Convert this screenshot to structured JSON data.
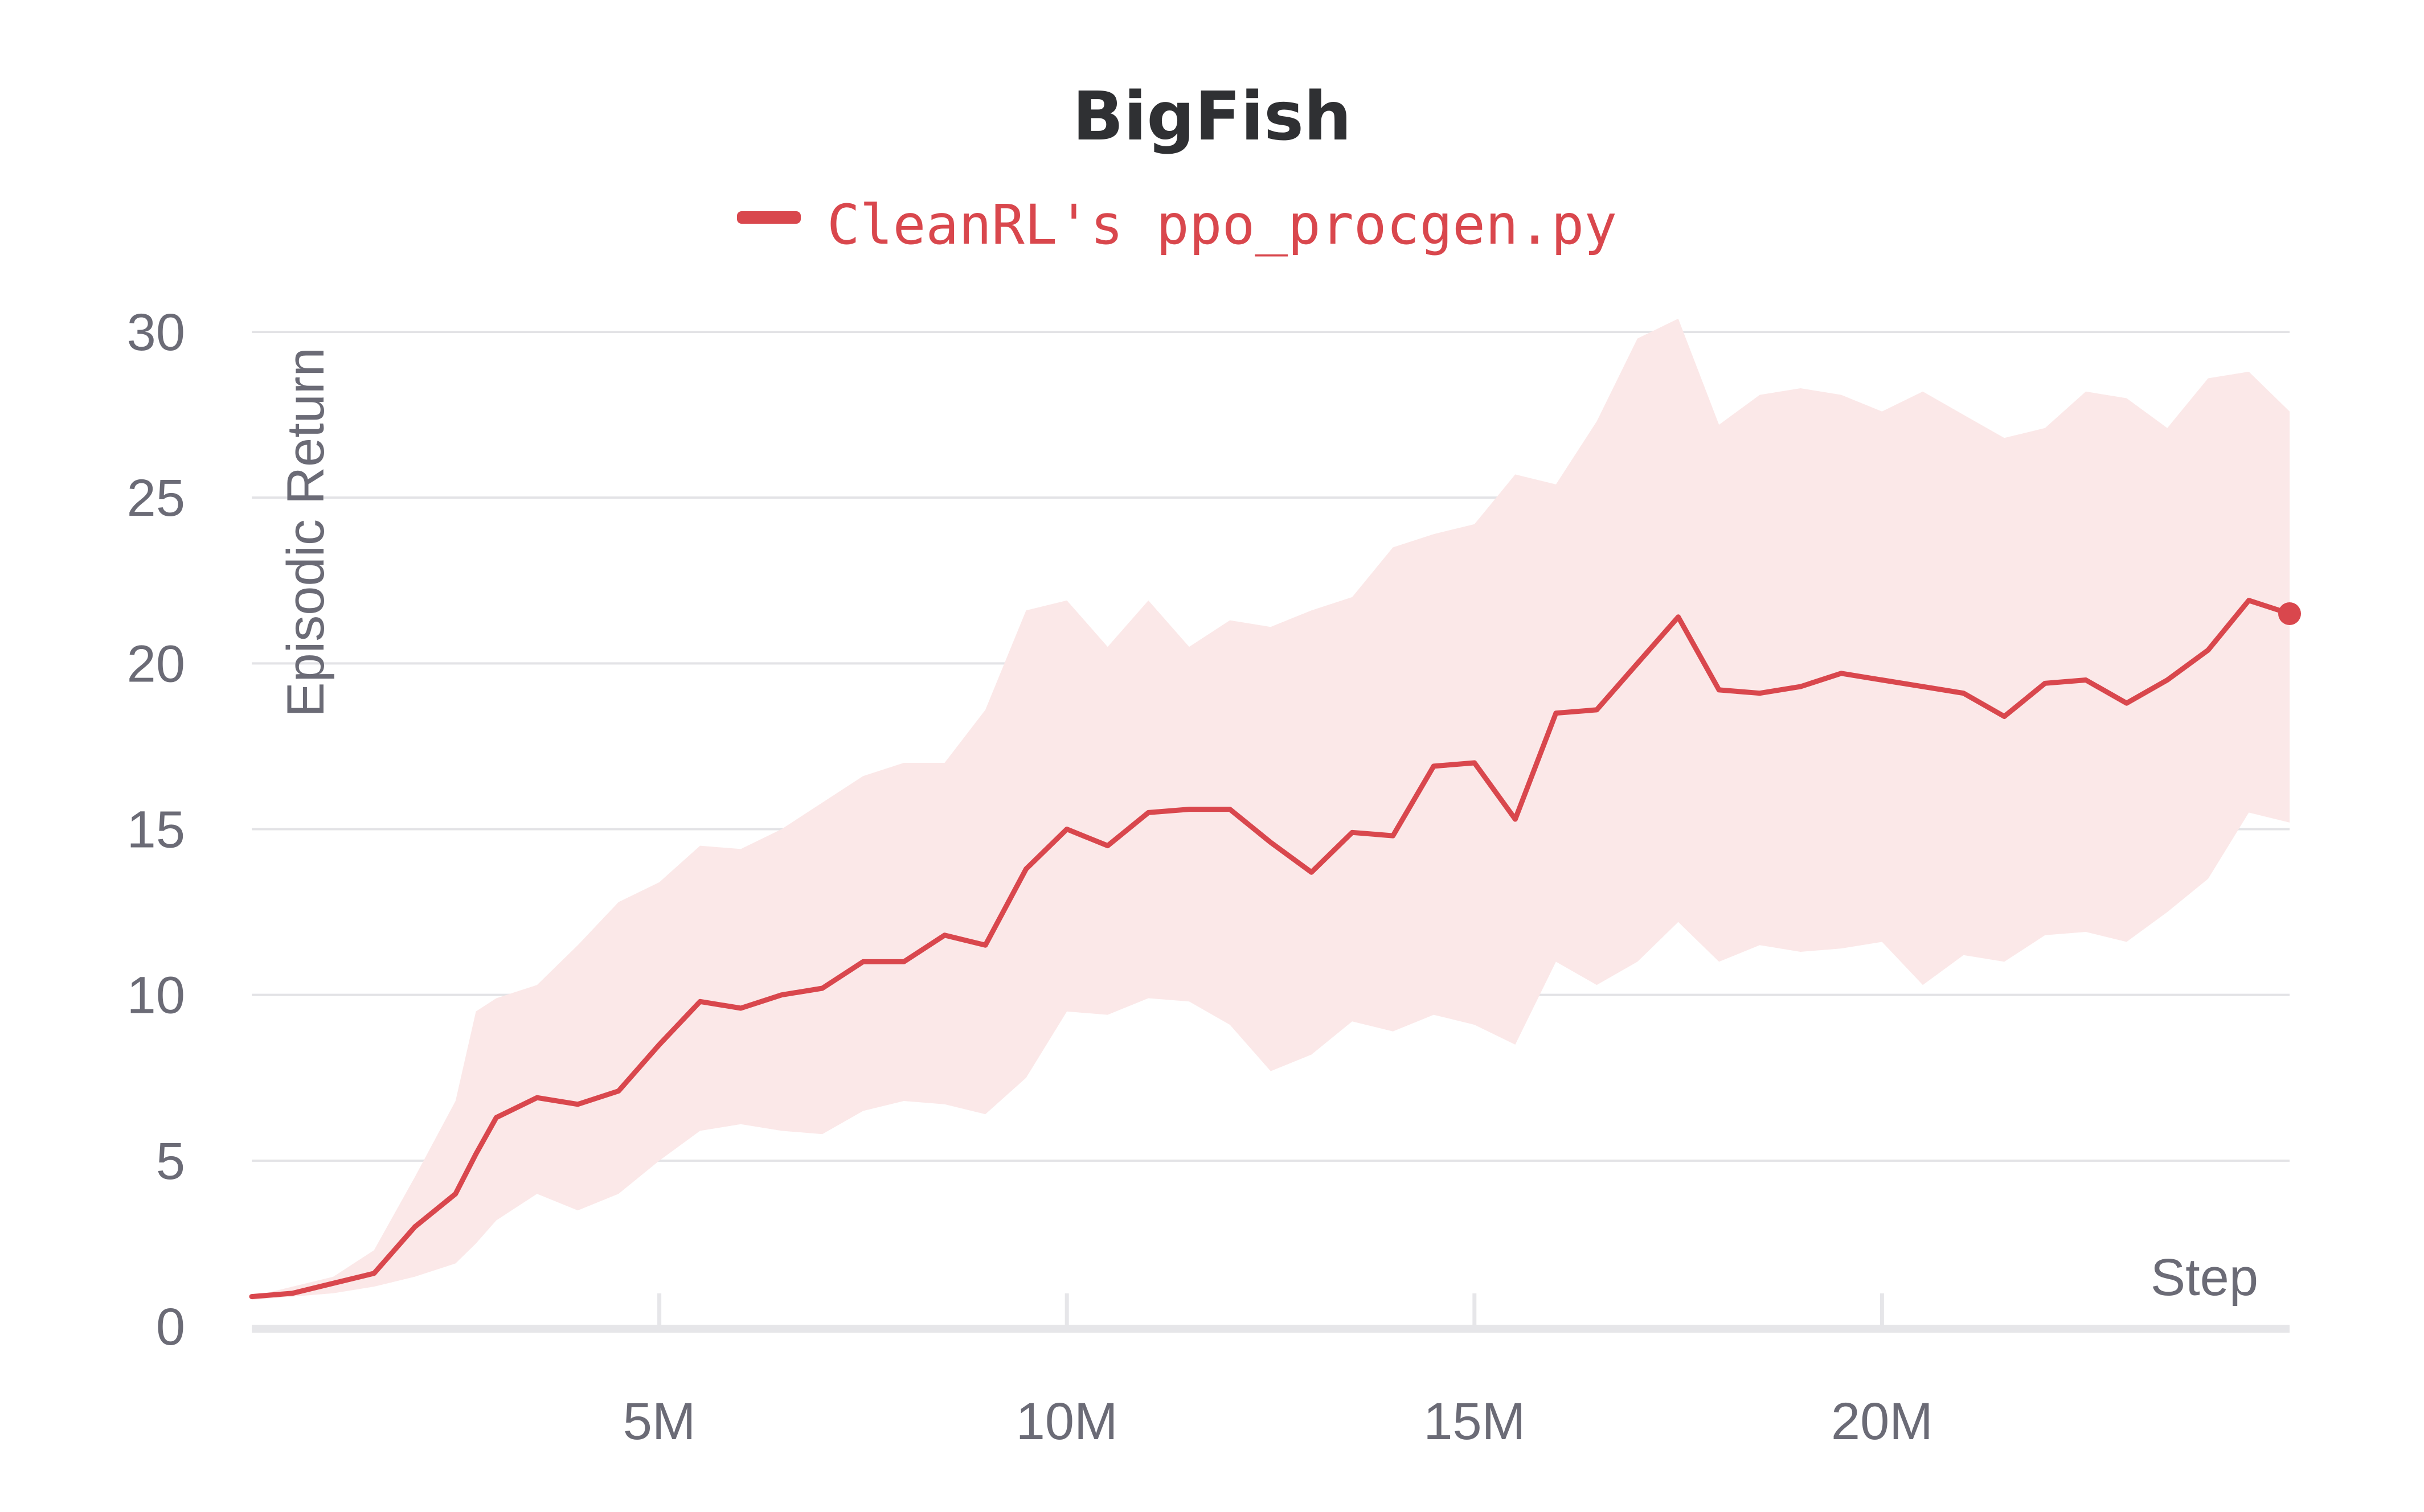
{
  "chart_data": {
    "type": "line",
    "title": "BigFish",
    "xlabel": "Step",
    "ylabel": "Episodic Return",
    "xlim": [
      0,
      25000000
    ],
    "ylim": [
      0,
      30
    ],
    "x_ticks": [
      {
        "value": 5000000,
        "label": "5M"
      },
      {
        "value": 10000000,
        "label": "10M"
      },
      {
        "value": 15000000,
        "label": "15M"
      },
      {
        "value": 20000000,
        "label": "20M"
      }
    ],
    "y_ticks": [
      {
        "value": 0,
        "label": "0"
      },
      {
        "value": 5,
        "label": "5"
      },
      {
        "value": 10,
        "label": "10"
      },
      {
        "value": 15,
        "label": "15"
      },
      {
        "value": 20,
        "label": "20"
      },
      {
        "value": 25,
        "label": "25"
      },
      {
        "value": 30,
        "label": "30"
      }
    ],
    "grid": true,
    "legend_position": "top-center",
    "series": [
      {
        "name": "CleanRL's ppo_procgen.py",
        "color": "#d9474d",
        "band_color": "#fbe8e8",
        "x": [
          0,
          500000,
          1000000,
          1500000,
          2000000,
          2500000,
          2750000,
          3000000,
          3500000,
          4000000,
          4500000,
          5000000,
          5500000,
          6000000,
          6500000,
          7000000,
          7500000,
          8000000,
          8500000,
          9000000,
          9500000,
          10000000,
          10500000,
          11000000,
          11500000,
          12000000,
          12500000,
          13000000,
          13500000,
          14000000,
          14500000,
          15000000,
          15500000,
          16000000,
          16500000,
          17000000,
          17500000,
          18000000,
          18500000,
          19000000,
          19500000,
          20000000,
          20500000,
          21000000,
          21500000,
          22000000,
          22500000,
          23000000,
          23500000,
          24000000,
          24500000,
          25000000
        ],
        "mean": [
          0.9,
          1.0,
          1.3,
          1.6,
          3.0,
          4.0,
          5.2,
          6.3,
          6.9,
          6.7,
          7.1,
          8.5,
          9.8,
          9.6,
          10.0,
          10.2,
          11.0,
          11.0,
          11.8,
          11.5,
          13.8,
          15.0,
          14.5,
          15.5,
          15.6,
          15.6,
          14.6,
          13.7,
          14.9,
          14.8,
          16.9,
          17.0,
          15.3,
          18.5,
          18.6,
          20.0,
          21.4,
          19.2,
          19.1,
          19.3,
          19.7,
          19.5,
          19.3,
          19.1,
          18.4,
          19.4,
          19.5,
          18.8,
          19.5,
          20.4,
          21.9,
          21.5
        ],
        "upper": [
          0.9,
          1.2,
          1.5,
          2.3,
          4.5,
          6.8,
          9.5,
          9.9,
          10.3,
          11.5,
          12.8,
          13.4,
          14.5,
          14.4,
          15.0,
          15.8,
          16.6,
          17.0,
          17.0,
          18.6,
          21.6,
          21.9,
          20.5,
          21.9,
          20.5,
          21.3,
          21.1,
          21.6,
          22.0,
          23.5,
          23.9,
          24.2,
          25.7,
          25.4,
          27.3,
          29.8,
          30.4,
          27.2,
          28.1,
          28.3,
          28.1,
          27.6,
          28.2,
          27.5,
          26.8,
          27.1,
          28.2,
          28.0,
          27.1,
          28.6,
          28.8,
          27.6
        ],
        "lower": [
          0.8,
          0.9,
          1.0,
          1.2,
          1.5,
          1.9,
          2.5,
          3.2,
          4.0,
          3.5,
          4.0,
          5.0,
          5.9,
          6.1,
          5.9,
          5.8,
          6.5,
          6.8,
          6.7,
          6.4,
          7.5,
          9.5,
          9.4,
          9.9,
          9.8,
          9.1,
          7.7,
          8.2,
          9.2,
          8.9,
          9.4,
          9.1,
          8.5,
          11.0,
          10.3,
          11.0,
          12.2,
          11.0,
          11.5,
          11.3,
          11.4,
          11.6,
          10.3,
          11.2,
          11.0,
          11.8,
          11.9,
          11.6,
          12.5,
          13.5,
          15.5,
          15.2
        ]
      }
    ]
  }
}
